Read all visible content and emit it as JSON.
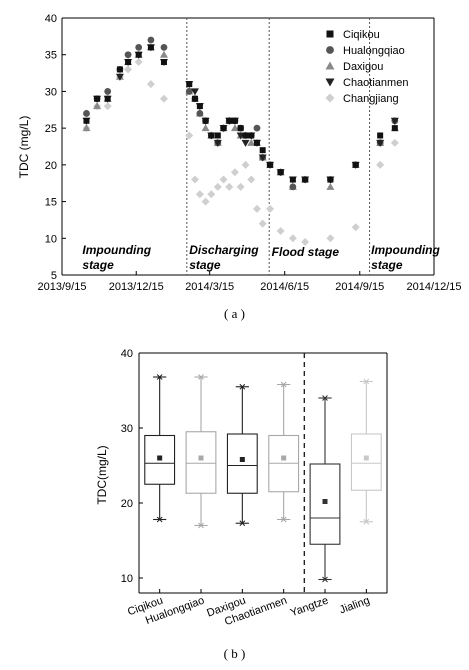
{
  "captions": {
    "a": "( a )",
    "b": "( b )"
  },
  "chart_data": [
    {
      "type": "scatter",
      "ylabel": "TDC (mg/L)",
      "xlabel": "",
      "ylim": [
        5,
        40
      ],
      "yticks": [
        5,
        10,
        15,
        20,
        25,
        30,
        35,
        40
      ],
      "xlim": [
        "2013-09-15",
        "2014-12-15"
      ],
      "xticks": [
        "2013/9/15",
        "2013/12/15",
        "2014/3/15",
        "2014/6/15",
        "2014/9/15",
        "2014/12/15"
      ],
      "stage_dividers": [
        "2014-02-15",
        "2014-05-27",
        "2014-09-27"
      ],
      "stages": [
        {
          "text": "Impounding\nstage",
          "anchor": "2013-10-10"
        },
        {
          "text": "Discharging\nstage",
          "anchor": "2014-02-18"
        },
        {
          "text": "Flood stage",
          "anchor": "2014-05-30"
        },
        {
          "text": "Impounding\nstage",
          "anchor": "2014-09-29"
        }
      ],
      "legend_position": "top-right",
      "series": [
        {
          "name": "Ciqikou",
          "marker": "square",
          "color": "#111111",
          "x": [
            "2013-10-15",
            "2013-10-28",
            "2013-11-10",
            "2013-11-25",
            "2013-12-05",
            "2013-12-18",
            "2014-01-02",
            "2014-01-18",
            "2014-02-18",
            "2014-02-25",
            "2014-03-03",
            "2014-03-10",
            "2014-03-17",
            "2014-03-25",
            "2014-04-01",
            "2014-04-08",
            "2014-04-15",
            "2014-04-22",
            "2014-04-28",
            "2014-05-05",
            "2014-05-12",
            "2014-05-19",
            "2014-05-28",
            "2014-06-10",
            "2014-06-25",
            "2014-07-10",
            "2014-08-10",
            "2014-09-10",
            "2014-10-10",
            "2014-10-28"
          ],
          "y": [
            26,
            29,
            29,
            33,
            34,
            35,
            36,
            34,
            31,
            29,
            28,
            26,
            24,
            24,
            25,
            26,
            26,
            25,
            24,
            24,
            23,
            22,
            20,
            19,
            18,
            18,
            18,
            20,
            24,
            25
          ]
        },
        {
          "name": "Hualongqiao",
          "marker": "circle",
          "color": "#555555",
          "x": [
            "2013-10-15",
            "2013-10-28",
            "2013-11-10",
            "2013-11-25",
            "2013-12-05",
            "2013-12-18",
            "2014-01-02",
            "2014-01-18",
            "2014-02-18",
            "2014-02-25",
            "2014-03-03",
            "2014-03-10",
            "2014-03-17",
            "2014-03-25",
            "2014-04-01",
            "2014-04-08",
            "2014-04-15",
            "2014-04-22",
            "2014-04-28",
            "2014-05-05",
            "2014-05-12",
            "2014-05-19",
            "2014-05-28",
            "2014-06-10",
            "2014-06-25",
            "2014-07-10",
            "2014-08-10",
            "2014-09-10",
            "2014-10-10",
            "2014-10-28"
          ],
          "y": [
            27,
            29,
            30,
            33,
            35,
            36,
            37,
            36,
            30,
            29,
            27,
            26,
            24,
            23,
            25,
            26,
            26,
            25,
            24,
            24,
            25,
            21,
            20,
            19,
            17,
            18,
            18,
            20,
            23,
            26
          ]
        },
        {
          "name": "Daxigou",
          "marker": "triangle-up",
          "color": "#8a8a8a",
          "x": [
            "2013-10-15",
            "2013-10-28",
            "2013-11-10",
            "2013-11-25",
            "2013-12-05",
            "2013-12-18",
            "2014-01-02",
            "2014-01-18",
            "2014-02-18",
            "2014-02-25",
            "2014-03-03",
            "2014-03-10",
            "2014-03-17",
            "2014-03-25",
            "2014-04-01",
            "2014-04-08",
            "2014-04-15",
            "2014-04-22",
            "2014-04-28",
            "2014-05-05",
            "2014-05-12",
            "2014-05-19",
            "2014-05-28",
            "2014-06-10",
            "2014-06-25",
            "2014-07-10",
            "2014-08-10",
            "2014-09-10",
            "2014-10-10",
            "2014-10-28"
          ],
          "y": [
            25,
            28,
            29,
            32,
            34,
            35,
            36,
            35,
            30,
            29,
            27,
            25,
            24,
            23,
            25,
            26,
            25,
            24,
            24,
            23,
            23,
            21,
            20,
            19,
            17,
            18,
            17,
            20,
            23,
            25
          ]
        },
        {
          "name": "Chaotianmen",
          "marker": "triangle-down",
          "color": "#222222",
          "x": [
            "2013-10-15",
            "2013-10-28",
            "2013-11-10",
            "2013-11-25",
            "2013-12-05",
            "2013-12-18",
            "2014-01-02",
            "2014-01-18",
            "2014-02-18",
            "2014-02-25",
            "2014-03-03",
            "2014-03-10",
            "2014-03-17",
            "2014-03-25",
            "2014-04-01",
            "2014-04-08",
            "2014-04-15",
            "2014-04-22",
            "2014-04-28",
            "2014-05-05",
            "2014-05-12",
            "2014-05-19",
            "2014-05-28",
            "2014-06-10",
            "2014-06-25",
            "2014-07-10",
            "2014-08-10",
            "2014-09-10",
            "2014-10-10",
            "2014-10-28"
          ],
          "y": [
            26,
            29,
            29,
            32,
            34,
            35,
            36,
            34,
            31,
            30,
            28,
            26,
            24,
            23,
            25,
            26,
            26,
            24,
            23,
            24,
            23,
            21,
            20,
            19,
            18,
            18,
            18,
            20,
            23,
            26
          ]
        },
        {
          "name": "Changjiang",
          "marker": "diamond",
          "color": "#cfcfcf",
          "x": [
            "2013-10-15",
            "2013-10-28",
            "2013-11-10",
            "2013-11-25",
            "2013-12-05",
            "2013-12-18",
            "2014-01-02",
            "2014-01-18",
            "2014-02-18",
            "2014-02-25",
            "2014-03-03",
            "2014-03-10",
            "2014-03-17",
            "2014-03-25",
            "2014-04-01",
            "2014-04-08",
            "2014-04-15",
            "2014-04-22",
            "2014-04-28",
            "2014-05-05",
            "2014-05-12",
            "2014-05-19",
            "2014-05-28",
            "2014-06-10",
            "2014-06-25",
            "2014-07-10",
            "2014-08-10",
            "2014-09-10",
            "2014-10-10",
            "2014-10-28"
          ],
          "y": [
            25,
            28,
            28,
            32,
            33,
            34,
            31,
            29,
            24,
            18,
            16,
            15,
            16,
            17,
            18,
            17,
            19,
            17,
            20,
            18,
            14,
            12,
            14,
            11,
            10,
            9.5,
            10,
            11.5,
            20,
            23
          ]
        }
      ]
    },
    {
      "type": "box",
      "ylabel": "TDC(mg/L)",
      "xlabel": "",
      "ylim": [
        8,
        40
      ],
      "yticks": [
        10,
        20,
        30,
        40
      ],
      "categories": [
        "Ciqikou",
        "Hualongqiao",
        "Daxigou",
        "Chaotianmen",
        "Yangtze",
        "Jialing"
      ],
      "divider_after": "Chaotianmen",
      "series": [
        {
          "name": "Ciqikou",
          "color": "#222222",
          "min": 17.8,
          "q1": 22.5,
          "median": 25.3,
          "q3": 29.0,
          "max": 36.8,
          "mean": 26.0
        },
        {
          "name": "Hualongqiao",
          "color": "#a8a8a8",
          "min": 17.0,
          "q1": 21.3,
          "median": 25.3,
          "q3": 29.5,
          "max": 36.8,
          "mean": 26.0
        },
        {
          "name": "Daxigou",
          "color": "#222222",
          "min": 17.3,
          "q1": 21.3,
          "median": 25.0,
          "q3": 29.2,
          "max": 35.5,
          "mean": 25.8
        },
        {
          "name": "Chaotianmen",
          "color": "#a8a8a8",
          "min": 17.8,
          "q1": 21.5,
          "median": 25.3,
          "q3": 29.0,
          "max": 35.8,
          "mean": 26.0
        },
        {
          "name": "Yangtze",
          "color": "#333333",
          "min": 9.8,
          "q1": 14.5,
          "median": 18.0,
          "q3": 25.2,
          "max": 34.0,
          "mean": 20.2
        },
        {
          "name": "Jialing",
          "color": "#c8c8c8",
          "min": 17.5,
          "q1": 21.7,
          "median": 25.3,
          "q3": 29.2,
          "max": 36.2,
          "mean": 26.0
        }
      ]
    }
  ]
}
